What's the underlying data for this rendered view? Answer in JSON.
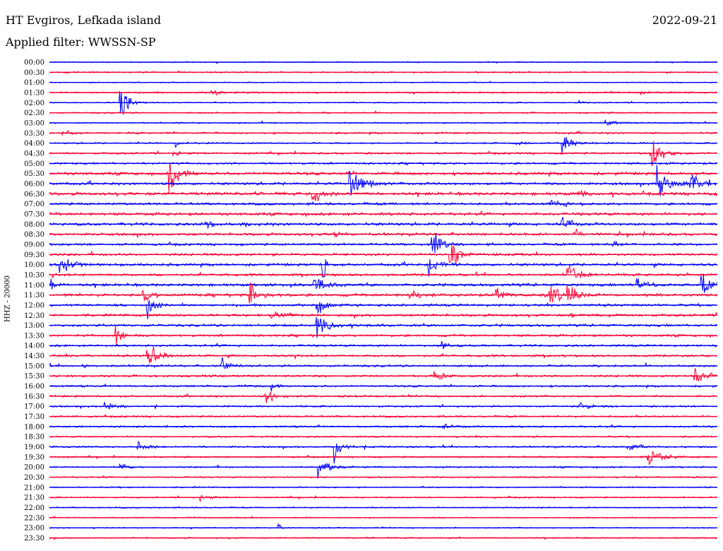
{
  "header": {
    "station": "HT Evgiros, Lefkada island",
    "date": "2022-09-21",
    "filter": "Applied filter: WWSSN-SP"
  },
  "chart_data": {
    "type": "line",
    "ylabel": "HHZ - 20000",
    "row_times": [
      "00:00",
      "00:30",
      "01:00",
      "01:30",
      "02:00",
      "02:30",
      "03:00",
      "03:30",
      "04:00",
      "04:30",
      "05:00",
      "05:30",
      "06:00",
      "06:30",
      "07:00",
      "07:30",
      "08:00",
      "08:30",
      "09:00",
      "09:30",
      "10:00",
      "10:30",
      "11:00",
      "11:30",
      "12:00",
      "12:30",
      "13:00",
      "13:30",
      "14:00",
      "14:30",
      "15:00",
      "15:30",
      "16:00",
      "16:30",
      "17:00",
      "17:30",
      "18:00",
      "18:30",
      "19:00",
      "19:30",
      "20:00",
      "20:30",
      "21:00",
      "21:30",
      "22:00",
      "22:30",
      "23:00",
      "23:30"
    ],
    "trace_colors": [
      "#0000ff",
      "#ff0033"
    ],
    "x_range_minutes": [
      0,
      30
    ],
    "noise_levels": [
      0.6,
      0.8,
      0.6,
      0.9,
      0.7,
      0.8,
      0.8,
      1.0,
      0.9,
      1.1,
      1.2,
      1.6,
      1.5,
      1.7,
      1.4,
      1.6,
      1.6,
      1.5,
      1.3,
      1.4,
      1.5,
      1.4,
      1.6,
      1.6,
      1.4,
      1.4,
      1.4,
      1.3,
      1.2,
      1.2,
      1.2,
      1.2,
      1.1,
      1.1,
      1.0,
      1.0,
      1.0,
      0.9,
      1.0,
      0.9,
      0.9,
      0.8,
      0.8,
      0.8,
      0.7,
      0.7,
      0.7,
      0.7
    ],
    "events": [
      {
        "row": 3,
        "minute": 7.3,
        "amplitude": 6,
        "duration": 0.8
      },
      {
        "row": 3,
        "minute": 26.6,
        "amplitude": 5,
        "duration": 0.5
      },
      {
        "row": 4,
        "minute": 3.2,
        "amplitude": 40,
        "duration": 0.8
      },
      {
        "row": 4,
        "minute": 23.8,
        "amplitude": 4,
        "duration": 0.4
      },
      {
        "row": 6,
        "minute": 25.0,
        "amplitude": 6,
        "duration": 1.0
      },
      {
        "row": 7,
        "minute": 0.6,
        "amplitude": 6,
        "duration": 1.2
      },
      {
        "row": 8,
        "minute": 5.7,
        "amplitude": 4,
        "duration": 0.6
      },
      {
        "row": 8,
        "minute": 23.0,
        "amplitude": 25,
        "duration": 0.8
      },
      {
        "row": 8,
        "minute": 21.0,
        "amplitude": 4,
        "duration": 1.0
      },
      {
        "row": 9,
        "minute": 27.0,
        "amplitude": 40,
        "duration": 1.0
      },
      {
        "row": 9,
        "minute": 5.6,
        "amplitude": 4,
        "duration": 1.0
      },
      {
        "row": 11,
        "minute": 5.4,
        "amplitude": 42,
        "duration": 1.0
      },
      {
        "row": 12,
        "minute": 13.5,
        "amplitude": 28,
        "duration": 1.6
      },
      {
        "row": 12,
        "minute": 27.3,
        "amplitude": 34,
        "duration": 1.3
      },
      {
        "row": 12,
        "minute": 28.8,
        "amplitude": 22,
        "duration": 1.3
      },
      {
        "row": 13,
        "minute": 11.8,
        "amplitude": 30,
        "duration": 0.8
      },
      {
        "row": 13,
        "minute": 23.8,
        "amplitude": 8,
        "duration": 0.8
      },
      {
        "row": 14,
        "minute": 22.4,
        "amplitude": 10,
        "duration": 1.0
      },
      {
        "row": 16,
        "minute": 23.0,
        "amplitude": 18,
        "duration": 1.0
      },
      {
        "row": 16,
        "minute": 7.0,
        "amplitude": 6,
        "duration": 1.0
      },
      {
        "row": 17,
        "minute": 12.8,
        "amplitude": 6,
        "duration": 0.8
      },
      {
        "row": 17,
        "minute": 23.6,
        "amplitude": 10,
        "duration": 0.8
      },
      {
        "row": 18,
        "minute": 17.2,
        "amplitude": 32,
        "duration": 0.8
      },
      {
        "row": 18,
        "minute": 25.3,
        "amplitude": 6,
        "duration": 0.6
      },
      {
        "row": 19,
        "minute": 18.0,
        "amplitude": 28,
        "duration": 0.9
      },
      {
        "row": 20,
        "minute": 0.5,
        "amplitude": 16,
        "duration": 1.2
      },
      {
        "row": 20,
        "minute": 17.0,
        "amplitude": 22,
        "duration": 0.8
      },
      {
        "row": 20,
        "minute": 12.3,
        "amplitude": 40,
        "duration": 0.3
      },
      {
        "row": 21,
        "minute": 23.3,
        "amplitude": 30,
        "duration": 1.0
      },
      {
        "row": 22,
        "minute": 11.9,
        "amplitude": 18,
        "duration": 0.9
      },
      {
        "row": 22,
        "minute": 26.4,
        "amplitude": 14,
        "duration": 0.9
      },
      {
        "row": 22,
        "minute": 29.3,
        "amplitude": 20,
        "duration": 1.0
      },
      {
        "row": 22,
        "minute": 0.0,
        "amplitude": 16,
        "duration": 0.5
      },
      {
        "row": 23,
        "minute": 4.2,
        "amplitude": 14,
        "duration": 1.0
      },
      {
        "row": 23,
        "minute": 9.0,
        "amplitude": 28,
        "duration": 0.8
      },
      {
        "row": 23,
        "minute": 16.2,
        "amplitude": 12,
        "duration": 0.8
      },
      {
        "row": 23,
        "minute": 20.0,
        "amplitude": 16,
        "duration": 0.9
      },
      {
        "row": 23,
        "minute": 22.5,
        "amplitude": 26,
        "duration": 1.0
      },
      {
        "row": 23,
        "minute": 23.2,
        "amplitude": 22,
        "duration": 1.0
      },
      {
        "row": 24,
        "minute": 4.4,
        "amplitude": 22,
        "duration": 0.8
      },
      {
        "row": 24,
        "minute": 12.0,
        "amplitude": 20,
        "duration": 1.0
      },
      {
        "row": 25,
        "minute": 10.0,
        "amplitude": 8,
        "duration": 1.2
      },
      {
        "row": 25,
        "minute": 23.2,
        "amplitude": 6,
        "duration": 1.0
      },
      {
        "row": 26,
        "minute": 12.0,
        "amplitude": 26,
        "duration": 1.2
      },
      {
        "row": 27,
        "minute": 3.0,
        "amplitude": 18,
        "duration": 0.8
      },
      {
        "row": 28,
        "minute": 17.6,
        "amplitude": 12,
        "duration": 0.8
      },
      {
        "row": 29,
        "minute": 4.4,
        "amplitude": 28,
        "duration": 1.1
      },
      {
        "row": 30,
        "minute": 7.7,
        "amplitude": 16,
        "duration": 0.8
      },
      {
        "row": 30,
        "minute": 1.5,
        "amplitude": 5,
        "duration": 0.4
      },
      {
        "row": 31,
        "minute": 17.3,
        "amplitude": 16,
        "duration": 0.8
      },
      {
        "row": 31,
        "minute": 29.0,
        "amplitude": 24,
        "duration": 1.0
      },
      {
        "row": 32,
        "minute": 10.0,
        "amplitude": 10,
        "duration": 0.6
      },
      {
        "row": 33,
        "minute": 9.7,
        "amplitude": 16,
        "duration": 1.0
      },
      {
        "row": 34,
        "minute": 2.5,
        "amplitude": 8,
        "duration": 1.0
      },
      {
        "row": 34,
        "minute": 23.8,
        "amplitude": 8,
        "duration": 1.0
      },
      {
        "row": 36,
        "minute": 17.7,
        "amplitude": 6,
        "duration": 1.0
      },
      {
        "row": 38,
        "minute": 4.0,
        "amplitude": 10,
        "duration": 1.2
      },
      {
        "row": 38,
        "minute": 12.8,
        "amplitude": 26,
        "duration": 0.8
      },
      {
        "row": 38,
        "minute": 26.0,
        "amplitude": 10,
        "duration": 1.2
      },
      {
        "row": 39,
        "minute": 26.9,
        "amplitude": 14,
        "duration": 1.6
      },
      {
        "row": 40,
        "minute": 3.2,
        "amplitude": 6,
        "duration": 0.8
      },
      {
        "row": 40,
        "minute": 12.1,
        "amplitude": 18,
        "duration": 1.2
      },
      {
        "row": 43,
        "minute": 6.8,
        "amplitude": 6,
        "duration": 1.0
      },
      {
        "row": 46,
        "minute": 10.3,
        "amplitude": 6,
        "duration": 0.3
      }
    ]
  }
}
